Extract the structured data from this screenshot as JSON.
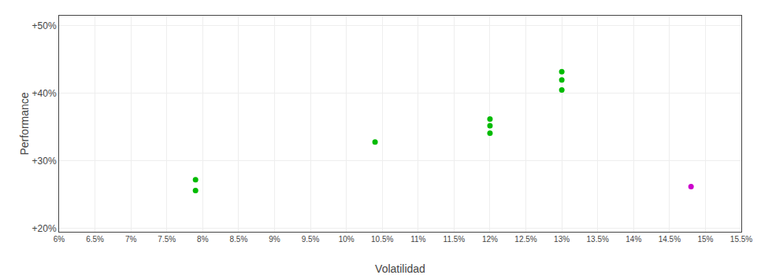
{
  "chart_data": {
    "type": "scatter",
    "xlabel": "Volatilidad",
    "ylabel": "Performance",
    "series": [
      {
        "color": "#00bb00",
        "x": [
          0.079,
          0.079,
          0.104,
          0.12,
          0.12,
          0.12,
          0.13,
          0.13,
          0.13
        ],
        "values": [
          0.272,
          0.256,
          0.328,
          0.362,
          0.352,
          0.341,
          0.432,
          0.42,
          0.405
        ]
      },
      {
        "color": "#cc00cc",
        "x": [
          0.148
        ],
        "values": [
          0.262
        ]
      }
    ],
    "xlim": [
      0.06,
      0.155
    ],
    "ylim": [
      0.195,
      0.515
    ],
    "xticks": [
      {
        "value": 0.06,
        "label": "6%"
      },
      {
        "value": 0.065,
        "label": "6.5%"
      },
      {
        "value": 0.07,
        "label": "7%"
      },
      {
        "value": 0.075,
        "label": "7.5%"
      },
      {
        "value": 0.08,
        "label": "8%"
      },
      {
        "value": 0.085,
        "label": "8.5%"
      },
      {
        "value": 0.09,
        "label": "9%"
      },
      {
        "value": 0.095,
        "label": "9.5%"
      },
      {
        "value": 0.1,
        "label": "10%"
      },
      {
        "value": 0.105,
        "label": "10.5%"
      },
      {
        "value": 0.11,
        "label": "11%"
      },
      {
        "value": 0.115,
        "label": "11.5%"
      },
      {
        "value": 0.12,
        "label": "12%"
      },
      {
        "value": 0.125,
        "label": "12.5%"
      },
      {
        "value": 0.13,
        "label": "13%"
      },
      {
        "value": 0.135,
        "label": "13.5%"
      },
      {
        "value": 0.14,
        "label": "14%"
      },
      {
        "value": 0.145,
        "label": "14.5%"
      },
      {
        "value": 0.15,
        "label": "15%"
      },
      {
        "value": 0.155,
        "label": "15.5%"
      }
    ],
    "yticks": [
      {
        "value": 0.2,
        "label": "+20%"
      },
      {
        "value": 0.3,
        "label": "+30%"
      },
      {
        "value": 0.4,
        "label": "+40%"
      },
      {
        "value": 0.5,
        "label": "+50%"
      }
    ],
    "grid": true
  }
}
